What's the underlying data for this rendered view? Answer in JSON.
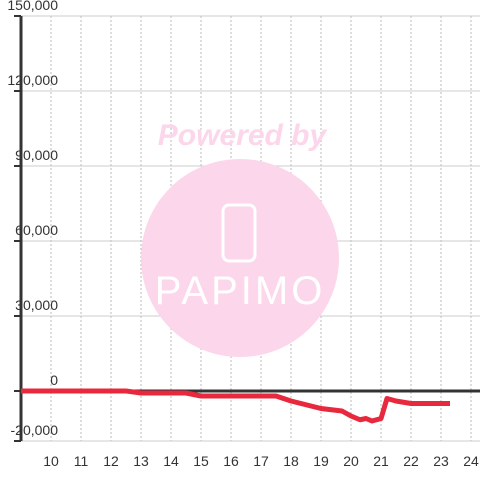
{
  "chart_data": {
    "type": "line",
    "annotations": [
      "Powered by",
      "PAPIMO"
    ],
    "x": [
      9,
      12.5,
      13,
      14.5,
      15,
      17.5,
      18,
      19,
      19.7,
      20,
      20.3,
      20.5,
      20.7,
      21,
      21.2,
      21.5,
      22,
      23.3
    ],
    "series": [
      {
        "color": "#e8283c",
        "values": [
          0,
          0,
          -800,
          -800,
          -2000,
          -2000,
          -4000,
          -7000,
          -8000,
          -10000,
          -11500,
          -11000,
          -12000,
          -11000,
          -3000,
          -4000,
          -5000,
          -5000
        ]
      }
    ],
    "xlim": [
      9,
      24.3
    ],
    "xticks": [
      10,
      11,
      12,
      13,
      14,
      15,
      16,
      17,
      18,
      19,
      20,
      21,
      22,
      23,
      24
    ],
    "ylim": [
      -20000,
      150000
    ],
    "yticks": [
      {
        "value": -20000,
        "label": "-20,000"
      },
      0,
      {
        "value": 30000,
        "label": "30,000"
      },
      {
        "value": 60000,
        "label": "60,000"
      },
      {
        "value": 90000,
        "label": "90,000"
      },
      {
        "value": 120000,
        "label": "120,000"
      },
      {
        "value": 150000,
        "label": "150,000"
      }
    ],
    "grid": true
  }
}
